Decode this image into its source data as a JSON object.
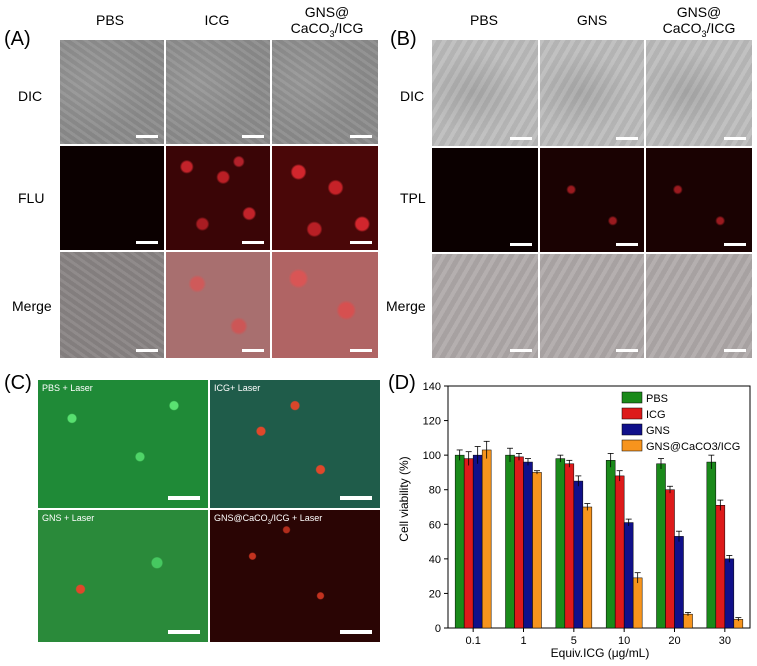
{
  "panelA": {
    "label": "(A)",
    "columns": [
      "PBS",
      "ICG",
      "GNS@"
    ],
    "col3_line2": "CaCO",
    "col3_sub": "3",
    "col3_tail": "/ICG",
    "rows": [
      "DIC",
      "FLU",
      "Merge"
    ]
  },
  "panelB": {
    "label": "(B)",
    "columns": [
      "PBS",
      "GNS",
      "GNS@"
    ],
    "col3_line2": "CaCO",
    "col3_sub": "3",
    "col3_tail": "/ICG",
    "rows": [
      "DIC",
      "TPL",
      "Merge"
    ]
  },
  "panelC": {
    "label": "(C)",
    "tiles": [
      "PBS + Laser",
      "ICG+ Laser",
      "GNS + Laser"
    ],
    "tile4_pre": "GNS@CaCO",
    "tile4_sub": "3",
    "tile4_tail": "/ICG + Laser"
  },
  "panelD": {
    "label": "(D)",
    "ylabel": "Cell viability (%)",
    "xlabel": "Equiv.ICG (μg/mL)"
  },
  "colors": {
    "PBS": "#1a8a1a",
    "ICG": "#dd1a1a",
    "GNS": "#10108a",
    "GNS@CaCO3/ICG": "#f7941d"
  },
  "chart_data": {
    "type": "bar",
    "categories": [
      "0.1",
      "1",
      "5",
      "10",
      "20",
      "30"
    ],
    "series": [
      {
        "name": "PBS",
        "values": [
          100,
          100,
          98,
          97,
          95,
          96
        ],
        "errors": [
          3,
          4,
          2,
          4,
          3,
          4
        ]
      },
      {
        "name": "ICG",
        "values": [
          98,
          99,
          95,
          88,
          80,
          71
        ],
        "errors": [
          4,
          2,
          2,
          3,
          2,
          3
        ]
      },
      {
        "name": "GNS",
        "values": [
          100,
          96,
          85,
          61,
          53,
          40
        ],
        "errors": [
          5,
          2,
          3,
          2,
          3,
          2
        ]
      },
      {
        "name": "GNS@CaCO3/ICG",
        "values": [
          103,
          90,
          70,
          29,
          8,
          5
        ],
        "errors": [
          5,
          1,
          2,
          3,
          1,
          1
        ]
      }
    ],
    "ylim": [
      0,
      140
    ],
    "yticks": [
      0,
      20,
      40,
      60,
      80,
      100,
      120,
      140
    ],
    "legend": "top-right",
    "ylabel": "Cell viability (%)",
    "xlabel": "Equiv.ICG (μg/mL)"
  }
}
